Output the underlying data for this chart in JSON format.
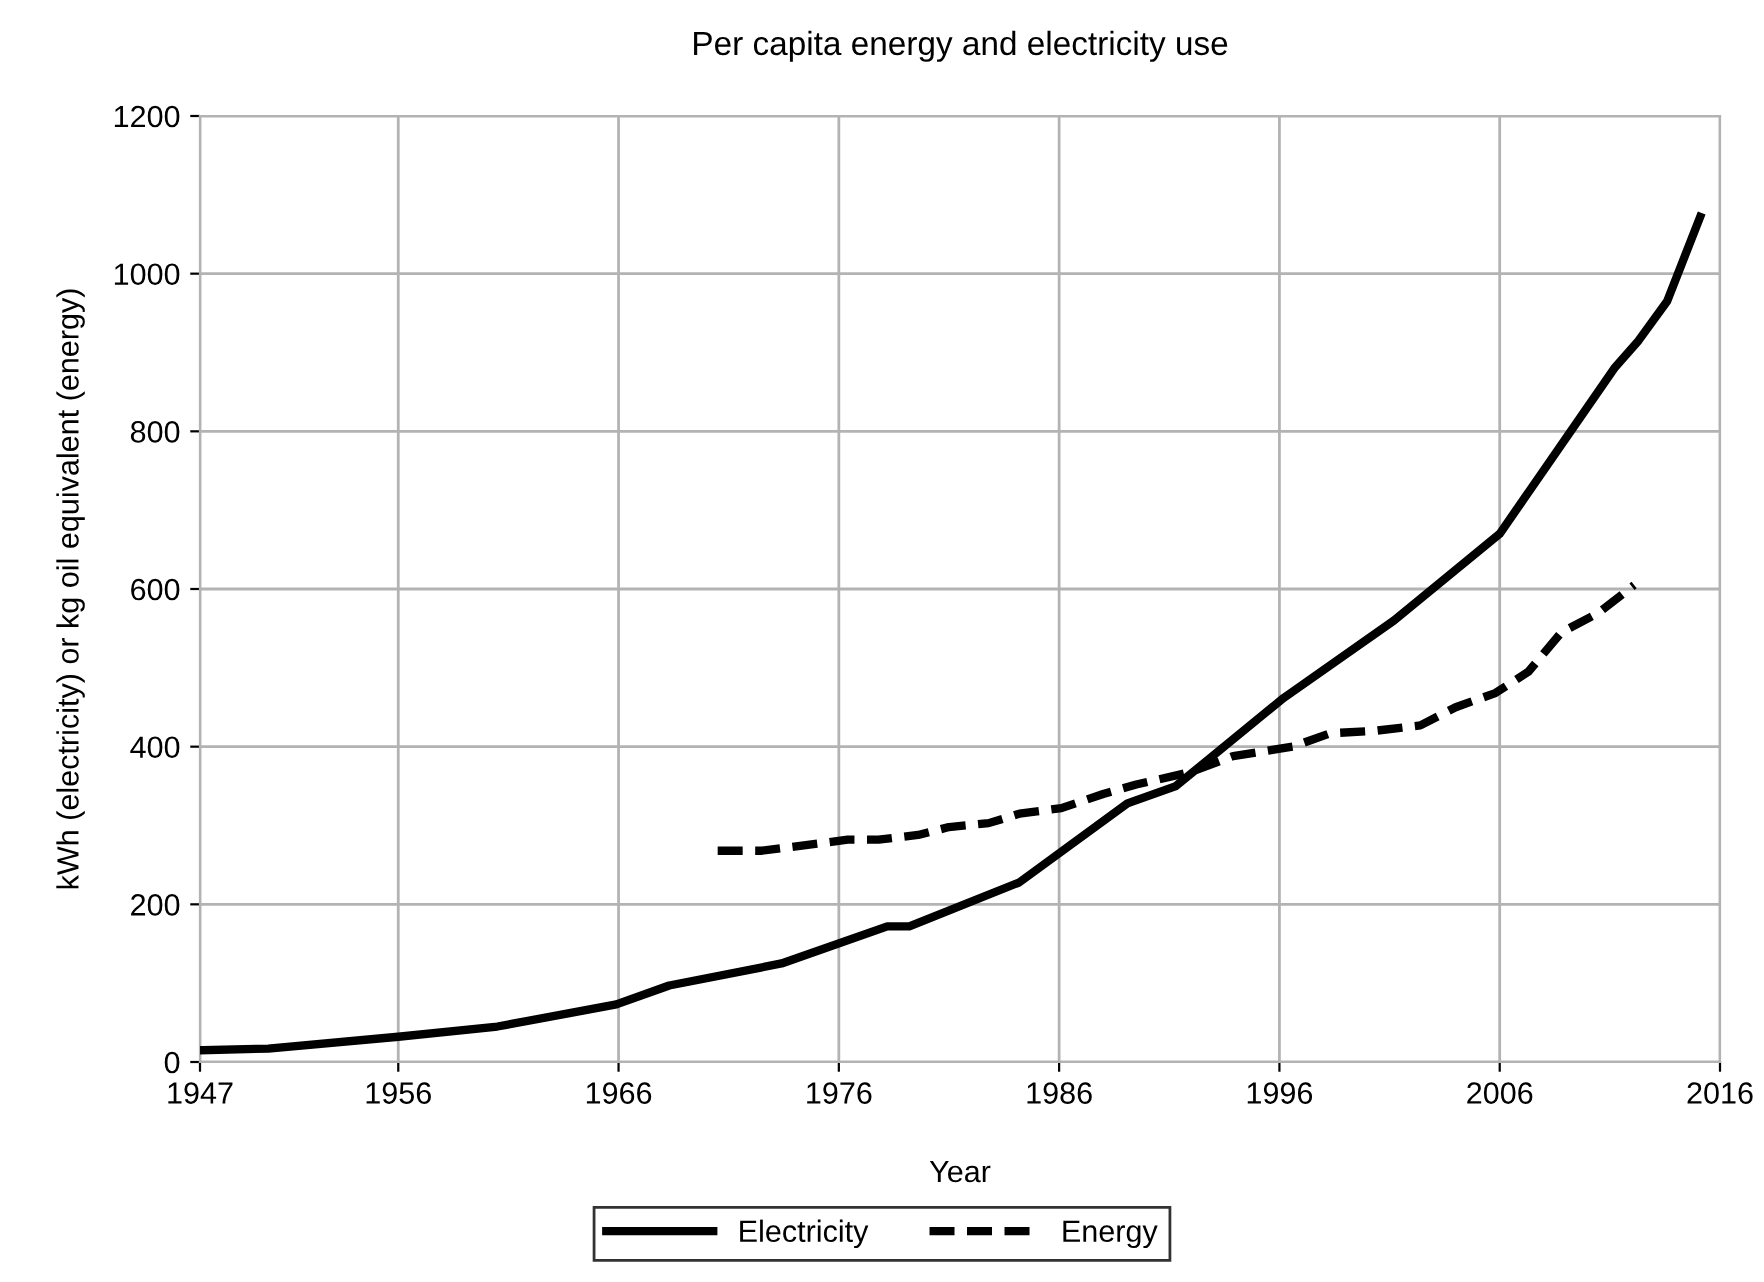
{
  "chart_data": {
    "type": "line",
    "title": "Per capita energy and electricity use",
    "xlabel": "Year",
    "ylabel": "kWh (electricity) or kg oil equivalent (energy)",
    "xlim": [
      1947,
      2016
    ],
    "xticks": [
      1947,
      1956,
      1966,
      1976,
      1986,
      1996,
      2006,
      2016
    ],
    "ylim": [
      0,
      1200
    ],
    "yticks": [
      0,
      200,
      400,
      600,
      800,
      1000,
      1200
    ],
    "grid": true,
    "legend": "bottom",
    "marker": "none",
    "series": [
      {
        "name": "Electricity",
        "color": "#000000",
        "line_style": "solid",
        "x": [
          1947.1,
          1950.1,
          1956,
          1960.5,
          1965.9,
          1968.3,
          1973.4,
          1978.2,
          1979.2,
          1984.2,
          1989.1,
          1991.3,
          1996.2,
          2001.2,
          2006,
          2011.2,
          2012.3,
          2013.6,
          2015.1
        ],
        "values": [
          15,
          17,
          32,
          45,
          73,
          97,
          125,
          172,
          172,
          228,
          328,
          350,
          462,
          560,
          670,
          880,
          915,
          965,
          1072
        ]
      },
      {
        "name": "Energy",
        "color": "#000000",
        "line_style": "dashed",
        "x": [
          1970.5,
          1972.5,
          1974.5,
          1976.4,
          1977.8,
          1979.6,
          1981.0,
          1982.8,
          1984.2,
          1986.1,
          1988.0,
          1989.5,
          1992.0,
          1993.9,
          1996.6,
          1998.3,
          2000.3,
          2002.4,
          2004.0,
          2005.8,
          2007.3,
          2008.8,
          2010.5,
          2012.1
        ],
        "values": [
          268,
          268,
          275,
          282,
          282,
          288,
          298,
          303,
          315,
          322,
          340,
          352,
          368,
          388,
          400,
          417,
          420,
          427,
          450,
          468,
          495,
          545,
          570,
          605
        ]
      }
    ]
  }
}
